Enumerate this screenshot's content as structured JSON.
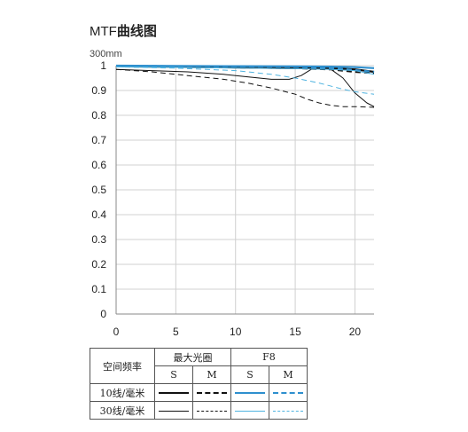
{
  "header": {
    "title_prefix": "MTF",
    "title_suffix": "曲线图",
    "subtitle": "300mm"
  },
  "chart_data": {
    "type": "line",
    "title": "MTF曲线图",
    "subtitle": "300mm",
    "xlabel": "",
    "ylabel": "",
    "xlim": [
      0,
      21.6
    ],
    "ylim": [
      0,
      1.0
    ],
    "x_ticks": [
      0,
      5,
      10,
      15,
      20
    ],
    "y_ticks": [
      0,
      0.1,
      0.2,
      0.3,
      0.4,
      0.5,
      0.6,
      0.7,
      0.8,
      0.9,
      1
    ],
    "x_tick_labels": [
      "0",
      "5",
      "10",
      "15",
      "20"
    ],
    "y_tick_labels": [
      "0",
      "0.1",
      "0.2",
      "0.3",
      "0.4",
      "0.5",
      "0.6",
      "0.7",
      "0.8",
      "0.9",
      "1"
    ],
    "grid": true,
    "series": [
      {
        "aperture": "最大光圈",
        "frequency": "10线/毫米",
        "orientation": "S",
        "color": "#111111",
        "width": 2.2,
        "dash": "",
        "x": [
          0,
          5,
          10,
          15,
          18,
          20,
          21.6
        ],
        "y": [
          0.997,
          0.995,
          0.993,
          0.99,
          0.99,
          0.985,
          0.975
        ]
      },
      {
        "aperture": "最大光圈",
        "frequency": "10线/毫米",
        "orientation": "M",
        "color": "#111111",
        "width": 2.2,
        "dash": "6,4",
        "x": [
          0,
          5,
          10,
          15,
          18,
          20,
          21.6
        ],
        "y": [
          0.997,
          0.995,
          0.993,
          0.99,
          0.985,
          0.975,
          0.97
        ]
      },
      {
        "aperture": "最大光圈",
        "frequency": "30线/毫米",
        "orientation": "S",
        "color": "#111111",
        "width": 1,
        "dash": "",
        "x": [
          0,
          3,
          6,
          9,
          11,
          13,
          14.5,
          15.5,
          16.5,
          18,
          19,
          20,
          21,
          21.6
        ],
        "y": [
          0.985,
          0.98,
          0.975,
          0.965,
          0.955,
          0.945,
          0.945,
          0.96,
          0.99,
          0.985,
          0.95,
          0.89,
          0.85,
          0.835
        ]
      },
      {
        "aperture": "最大光圈",
        "frequency": "30线/毫米",
        "orientation": "M",
        "color": "#111111",
        "width": 1,
        "dash": "6,4",
        "x": [
          0,
          3,
          6,
          9,
          11,
          13,
          15,
          16,
          17,
          18,
          19,
          20,
          21.6
        ],
        "y": [
          0.985,
          0.975,
          0.96,
          0.945,
          0.93,
          0.91,
          0.885,
          0.865,
          0.85,
          0.84,
          0.835,
          0.835,
          0.832
        ]
      },
      {
        "aperture": "F8",
        "frequency": "10线/毫米",
        "orientation": "S",
        "color": "#2e8fce",
        "width": 2.2,
        "dash": "",
        "x": [
          0,
          5,
          10,
          15,
          18,
          20,
          21.6
        ],
        "y": [
          1.0,
          0.999,
          0.998,
          0.997,
          0.996,
          0.994,
          0.99
        ]
      },
      {
        "aperture": "F8",
        "frequency": "10线/毫米",
        "orientation": "M",
        "color": "#2e8fce",
        "width": 2.2,
        "dash": "6,4",
        "x": [
          0,
          5,
          10,
          15,
          18,
          20,
          21.6
        ],
        "y": [
          0.999,
          0.998,
          0.997,
          0.995,
          0.99,
          0.982,
          0.975
        ]
      },
      {
        "aperture": "F8",
        "frequency": "30线/毫米",
        "orientation": "S",
        "color": "#4fb3e0",
        "width": 1,
        "dash": "",
        "x": [
          0,
          5,
          10,
          15,
          18,
          20,
          21.6
        ],
        "y": [
          0.995,
          0.993,
          0.99,
          0.988,
          0.985,
          0.98,
          0.965
        ]
      },
      {
        "aperture": "F8",
        "frequency": "30线/毫米",
        "orientation": "M",
        "color": "#4fb3e0",
        "width": 1,
        "dash": "6,4",
        "x": [
          0,
          5,
          10,
          13,
          15,
          17,
          19,
          20,
          21.6
        ],
        "y": [
          0.995,
          0.99,
          0.98,
          0.965,
          0.95,
          0.93,
          0.905,
          0.895,
          0.885
        ]
      }
    ]
  },
  "legend": {
    "row_header": "空间频率",
    "group_max": "最大光圈",
    "group_f8": "F8",
    "col_s": "S",
    "col_m": "M",
    "row_10": "10线/毫米",
    "row_30": "30线/毫米"
  }
}
